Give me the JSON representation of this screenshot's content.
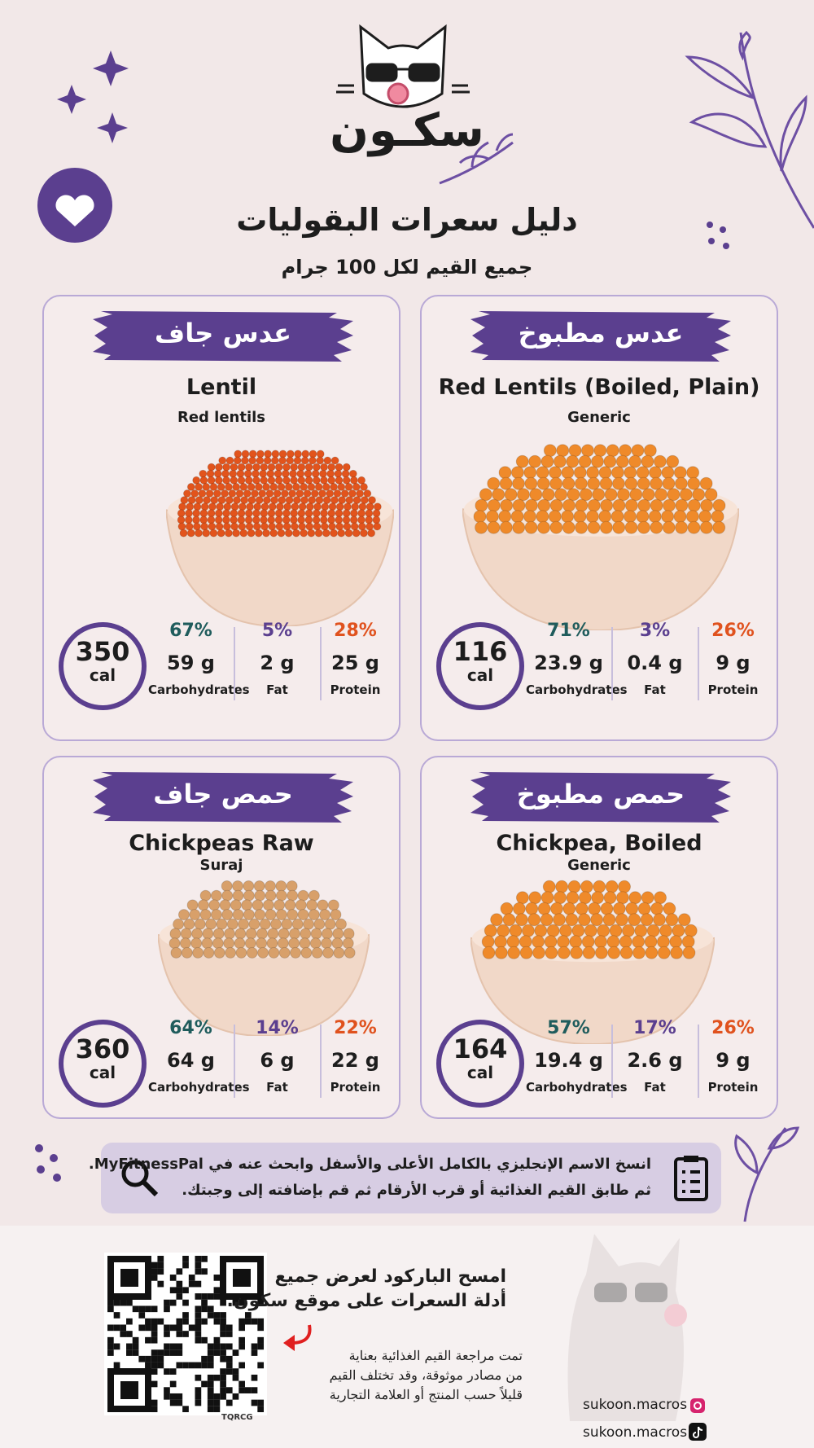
{
  "header": {
    "brand": "سكـون",
    "title": "دليل سعرات البقوليات",
    "subtitle": "جميع القيم لكل 100 جرام"
  },
  "cards": [
    {
      "arabic_name": "عدس جاف",
      "english_name": "Lentil",
      "brand": "Red lentils",
      "calories": "350",
      "cal_unit": "cal",
      "macros": [
        {
          "percent": "67%",
          "grams": "59 g",
          "label": "Carbohydrates"
        },
        {
          "percent": "5%",
          "grams": "2 g",
          "label": "Fat"
        },
        {
          "percent": "28%",
          "grams": "25 g",
          "label": "Protein"
        }
      ]
    },
    {
      "arabic_name": "عدس مطبوخ",
      "english_name": "Red Lentils (Boiled, Plain)",
      "brand": "Generic",
      "calories": "116",
      "cal_unit": "cal",
      "macros": [
        {
          "percent": "71%",
          "grams": "23.9 g",
          "label": "Carbohydrates"
        },
        {
          "percent": "3%",
          "grams": "0.4 g",
          "label": "Fat"
        },
        {
          "percent": "26%",
          "grams": "9 g",
          "label": "Protein"
        }
      ]
    },
    {
      "arabic_name": "حمص جاف",
      "english_name": "Chickpeas Raw",
      "brand": "Suraj",
      "calories": "360",
      "cal_unit": "cal",
      "macros": [
        {
          "percent": "64%",
          "grams": "64 g",
          "label": "Carbohydrates"
        },
        {
          "percent": "14%",
          "grams": "6 g",
          "label": "Fat"
        },
        {
          "percent": "22%",
          "grams": "22 g",
          "label": "Protein"
        }
      ]
    },
    {
      "arabic_name": "حمص مطبوخ",
      "english_name": "Chickpea, Boiled",
      "brand": "Generic",
      "calories": "164",
      "cal_unit": "cal",
      "macros": [
        {
          "percent": "57%",
          "grams": "19.4 g",
          "label": "Carbohydrates"
        },
        {
          "percent": "17%",
          "grams": "2.6 g",
          "label": "Fat"
        },
        {
          "percent": "26%",
          "grams": "9 g",
          "label": "Protein"
        }
      ]
    }
  ],
  "instructions": {
    "lines": [
      "انسخ الاسم الإنجليزي بالكامل الأعلى والأسفل وابحث عنه في MyFitnessPal.",
      "ثم طابق القيم الغذائية أو قرب الأرقام ثم قم بإضافته إلى وجبتك."
    ]
  },
  "footer": {
    "scan_lines": [
      "امسح الباركود لعرض جميع",
      "أدلة السعرات على موقع سكون."
    ],
    "note_lines": [
      "تمت مراجعة القيم الغذائية بعناية",
      "من مصادر موثوقة، وقد تختلف القيم",
      "قليلاً حسب المنتج أو العلامة التجارية"
    ],
    "qr_label": "TQRCG",
    "instagram": "sukoon.macros",
    "tiktok": "sukoon.macros"
  }
}
